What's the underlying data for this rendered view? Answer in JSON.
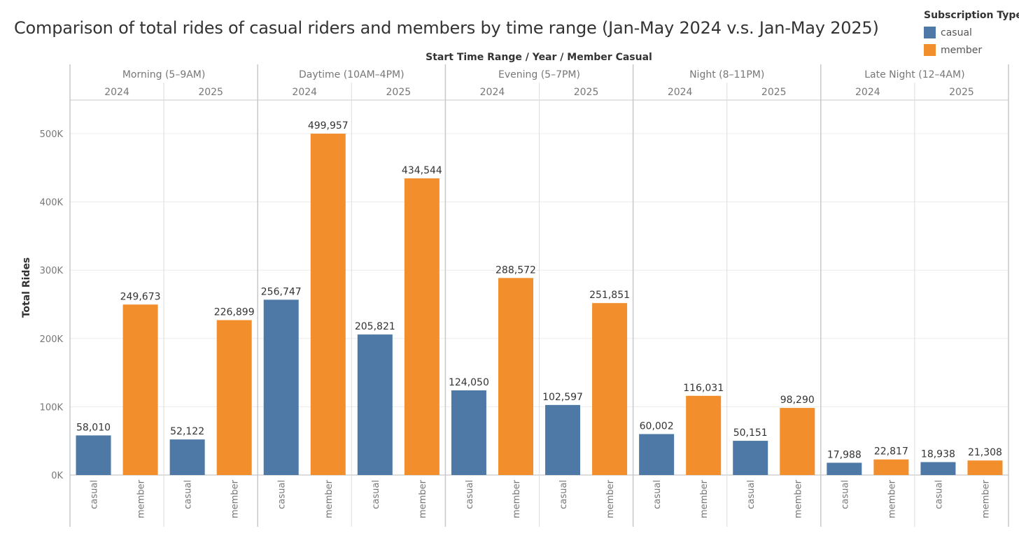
{
  "title": "Comparison of total rides of casual riders and members by time range (Jan-May 2024 v.s. Jan-May 2025)",
  "legend": {
    "title": "Subscription Type",
    "items": [
      {
        "label": "casual",
        "color": "#4e79a7"
      },
      {
        "label": "member",
        "color": "#f28e2b"
      }
    ]
  },
  "chart_data": {
    "type": "bar",
    "title": "Comparison of total rides of casual riders and members by time range (Jan-May 2024 v.s. Jan-May 2025)",
    "header_label": "Start Time Range  /  Year  /  Member Casual",
    "ylabel": "Total Rides",
    "ylim": [
      0,
      550000
    ],
    "yticks": [
      {
        "value": 0,
        "label": "0K"
      },
      {
        "value": 100000,
        "label": "100K"
      },
      {
        "value": 200000,
        "label": "200K"
      },
      {
        "value": 300000,
        "label": "300K"
      },
      {
        "value": 400000,
        "label": "400K"
      },
      {
        "value": 500000,
        "label": "500K"
      }
    ],
    "grid": true,
    "legend_position": "top-right",
    "groups": [
      {
        "range": "Morning (5–9AM)",
        "years": [
          {
            "year": "2024",
            "casual": 58010,
            "member": 249673,
            "casual_label": "58,010",
            "member_label": "249,673"
          },
          {
            "year": "2025",
            "casual": 52122,
            "member": 226899,
            "casual_label": "52,122",
            "member_label": "226,899"
          }
        ]
      },
      {
        "range": "Daytime (10AM–4PM)",
        "years": [
          {
            "year": "2024",
            "casual": 256747,
            "member": 499957,
            "casual_label": "256,747",
            "member_label": "499,957"
          },
          {
            "year": "2025",
            "casual": 205821,
            "member": 434544,
            "casual_label": "205,821",
            "member_label": "434,544"
          }
        ]
      },
      {
        "range": "Evening (5–7PM)",
        "years": [
          {
            "year": "2024",
            "casual": 124050,
            "member": 288572,
            "casual_label": "124,050",
            "member_label": "288,572"
          },
          {
            "year": "2025",
            "casual": 102597,
            "member": 251851,
            "casual_label": "102,597",
            "member_label": "251,851"
          }
        ]
      },
      {
        "range": "Night (8–11PM)",
        "years": [
          {
            "year": "2024",
            "casual": 60002,
            "member": 116031,
            "casual_label": "60,002",
            "member_label": "116,031"
          },
          {
            "year": "2025",
            "casual": 50151,
            "member": 98290,
            "casual_label": "50,151",
            "member_label": "98,290"
          }
        ]
      },
      {
        "range": "Late Night (12–4AM)",
        "years": [
          {
            "year": "2024",
            "casual": 17988,
            "member": 22817,
            "casual_label": "17,988",
            "member_label": "22,817"
          },
          {
            "year": "2025",
            "casual": 18938,
            "member": 21308,
            "casual_label": "18,938",
            "member_label": "21,308"
          }
        ]
      }
    ],
    "bar_categories": [
      "casual",
      "member"
    ]
  }
}
